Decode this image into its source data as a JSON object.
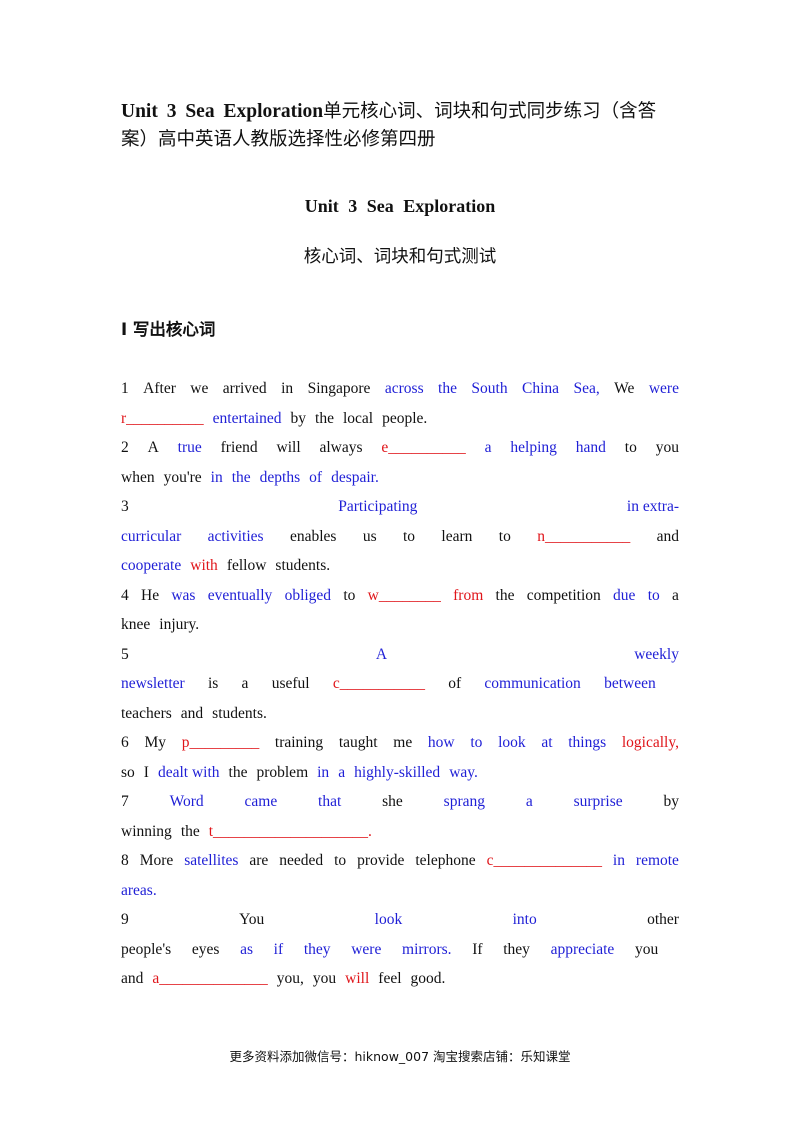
{
  "document": {
    "title_en": "Unit 3 Sea Exploration",
    "title_cn": "单元核心词、词块和句式同步练习（含答案）高中英语人教版选择性必修第四册",
    "unit_heading": "Unit 3 Sea Exploration",
    "sub_heading": "核心词、词块和句式测试",
    "section_title": "I 写出核心词"
  },
  "lines": [
    {
      "words": [
        {
          "t": "1",
          "c": "k"
        },
        {
          "t": "After",
          "c": "k"
        },
        {
          "t": "we",
          "c": "k"
        },
        {
          "t": "arrived",
          "c": "k"
        },
        {
          "t": "in",
          "c": "k"
        },
        {
          "t": "Singapore",
          "c": "k"
        },
        {
          "t": "across",
          "c": "b"
        },
        {
          "t": "the",
          "c": "b"
        },
        {
          "t": "South",
          "c": "b"
        },
        {
          "t": "China",
          "c": "b"
        },
        {
          "t": "Sea,",
          "c": "b"
        },
        {
          "t": "We",
          "c": "k"
        },
        {
          "t": "were",
          "c": "b"
        }
      ]
    },
    {
      "words": [
        {
          "t": "r__________",
          "c": "r"
        },
        {
          "t": "entertained",
          "c": "b"
        },
        {
          "t": "by",
          "c": "k"
        },
        {
          "t": "the",
          "c": "k"
        },
        {
          "t": "local",
          "c": "k"
        },
        {
          "t": "people.",
          "c": "k"
        }
      ],
      "left": true
    },
    {
      "words": [
        {
          "t": "2",
          "c": "k"
        },
        {
          "t": "A",
          "c": "k"
        },
        {
          "t": "true",
          "c": "b"
        },
        {
          "t": "friend",
          "c": "k"
        },
        {
          "t": "will",
          "c": "k"
        },
        {
          "t": "always",
          "c": "k"
        },
        {
          "t": "e__________",
          "c": "r"
        },
        {
          "t": "a",
          "c": "b"
        },
        {
          "t": "helping",
          "c": "b"
        },
        {
          "t": "hand",
          "c": "b"
        },
        {
          "t": "to",
          "c": "k"
        },
        {
          "t": "you",
          "c": "k"
        }
      ]
    },
    {
      "words": [
        {
          "t": "when",
          "c": "k"
        },
        {
          "t": "you're",
          "c": "k"
        },
        {
          "t": "in",
          "c": "b"
        },
        {
          "t": "the",
          "c": "b"
        },
        {
          "t": "depths",
          "c": "b"
        },
        {
          "t": "of",
          "c": "b"
        },
        {
          "t": "despair.",
          "c": "b"
        }
      ],
      "left": true
    },
    {
      "words": [
        {
          "t": "3",
          "c": "k"
        },
        {
          "t": "Participating",
          "c": "b"
        },
        {
          "t": "in extra-",
          "c": "b"
        }
      ]
    },
    {
      "words": [
        {
          "t": "curricular",
          "c": "b"
        },
        {
          "t": "activities",
          "c": "b"
        },
        {
          "t": "enables",
          "c": "k"
        },
        {
          "t": "us",
          "c": "k"
        },
        {
          "t": "to",
          "c": "k"
        },
        {
          "t": "learn",
          "c": "k"
        },
        {
          "t": "to",
          "c": "k"
        },
        {
          "t": "n___________",
          "c": "r"
        },
        {
          "t": "and",
          "c": "k"
        }
      ]
    },
    {
      "words": [
        {
          "t": "cooperate",
          "c": "b"
        },
        {
          "t": "with",
          "c": "r"
        },
        {
          "t": "fellow",
          "c": "k"
        },
        {
          "t": "students.",
          "c": "k"
        }
      ],
      "left": true
    },
    {
      "words": [
        {
          "t": "4",
          "c": "k"
        },
        {
          "t": "He",
          "c": "k"
        },
        {
          "t": "was",
          "c": "b"
        },
        {
          "t": "eventually",
          "c": "b"
        },
        {
          "t": "obliged",
          "c": "b"
        },
        {
          "t": "to",
          "c": "k"
        },
        {
          "t": "w________",
          "c": "r"
        },
        {
          "t": "from",
          "c": "r"
        },
        {
          "t": "the",
          "c": "k"
        },
        {
          "t": "competition",
          "c": "k"
        },
        {
          "t": "due",
          "c": "b"
        },
        {
          "t": "to",
          "c": "b"
        },
        {
          "t": "a",
          "c": "k"
        }
      ]
    },
    {
      "words": [
        {
          "t": "knee",
          "c": "k"
        },
        {
          "t": "injury.",
          "c": "k"
        }
      ],
      "left": true
    },
    {
      "words": [
        {
          "t": "5",
          "c": "k"
        },
        {
          "t": "A",
          "c": "b"
        },
        {
          "t": "weekly",
          "c": "b"
        }
      ]
    },
    {
      "words": [
        {
          "t": "newsletter",
          "c": "b"
        },
        {
          "t": "is",
          "c": "k"
        },
        {
          "t": "a",
          "c": "k"
        },
        {
          "t": "useful",
          "c": "k"
        },
        {
          "t": "c___________",
          "c": "r"
        },
        {
          "t": "of",
          "c": "k"
        },
        {
          "t": "communication",
          "c": "b"
        },
        {
          "t": "between",
          "c": "b"
        },
        {
          "t": " ",
          "c": "k"
        }
      ]
    },
    {
      "words": [
        {
          "t": "teachers",
          "c": "k"
        },
        {
          "t": "and",
          "c": "k"
        },
        {
          "t": "students.",
          "c": "k"
        }
      ],
      "left": true
    },
    {
      "words": [
        {
          "t": "6",
          "c": "k"
        },
        {
          "t": "My",
          "c": "k"
        },
        {
          "t": "p_________",
          "c": "r"
        },
        {
          "t": "training",
          "c": "k"
        },
        {
          "t": "taught",
          "c": "k"
        },
        {
          "t": "me",
          "c": "k"
        },
        {
          "t": "how",
          "c": "b"
        },
        {
          "t": "to",
          "c": "b"
        },
        {
          "t": "look",
          "c": "b"
        },
        {
          "t": "at",
          "c": "b"
        },
        {
          "t": "things",
          "c": "b"
        },
        {
          "t": "logically,",
          "c": "r"
        }
      ]
    },
    {
      "words": [
        {
          "t": "so",
          "c": "k"
        },
        {
          "t": "I",
          "c": "k"
        },
        {
          "t": "dealt with",
          "c": "b"
        },
        {
          "t": "the",
          "c": "k"
        },
        {
          "t": "problem",
          "c": "k"
        },
        {
          "t": "in",
          "c": "b"
        },
        {
          "t": "a",
          "c": "b"
        },
        {
          "t": "highly-skilled",
          "c": "b"
        },
        {
          "t": "way.",
          "c": "b"
        }
      ],
      "left": true
    },
    {
      "words": [
        {
          "t": "7",
          "c": "k"
        },
        {
          "t": "Word",
          "c": "b"
        },
        {
          "t": "came",
          "c": "b"
        },
        {
          "t": "that",
          "c": "b"
        },
        {
          "t": "she",
          "c": "k"
        },
        {
          "t": "sprang",
          "c": "b"
        },
        {
          "t": "a",
          "c": "b"
        },
        {
          "t": "surprise",
          "c": "b"
        },
        {
          "t": "by",
          "c": "k"
        }
      ]
    },
    {
      "words": [
        {
          "t": "winning",
          "c": "k"
        },
        {
          "t": "the",
          "c": "k"
        },
        {
          "t": "t____________________.",
          "c": "r"
        }
      ],
      "left": true
    },
    {
      "words": [
        {
          "t": "8",
          "c": "k"
        },
        {
          "t": "More",
          "c": "k"
        },
        {
          "t": "satellites",
          "c": "b"
        },
        {
          "t": "are",
          "c": "k"
        },
        {
          "t": "needed",
          "c": "k"
        },
        {
          "t": "to",
          "c": "k"
        },
        {
          "t": "provide",
          "c": "k"
        },
        {
          "t": "telephone",
          "c": "k"
        },
        {
          "t": "c______________",
          "c": "r"
        },
        {
          "t": "in",
          "c": "b"
        },
        {
          "t": "remote",
          "c": "b"
        }
      ]
    },
    {
      "words": [
        {
          "t": "areas.",
          "c": "b"
        }
      ],
      "left": true
    },
    {
      "words": [
        {
          "t": "9",
          "c": "k"
        },
        {
          "t": "You",
          "c": "k"
        },
        {
          "t": "look",
          "c": "b"
        },
        {
          "t": "into",
          "c": "b"
        },
        {
          "t": "other",
          "c": "k"
        }
      ]
    },
    {
      "words": [
        {
          "t": "people's",
          "c": "k"
        },
        {
          "t": "eyes",
          "c": "k"
        },
        {
          "t": "as",
          "c": "b"
        },
        {
          "t": "if",
          "c": "b"
        },
        {
          "t": "they",
          "c": "b"
        },
        {
          "t": "were",
          "c": "b"
        },
        {
          "t": "mirrors.",
          "c": "b"
        },
        {
          "t": "If",
          "c": "k"
        },
        {
          "t": "they",
          "c": "k"
        },
        {
          "t": "appreciate",
          "c": "b"
        },
        {
          "t": "you",
          "c": "k"
        },
        {
          "t": " ",
          "c": "k"
        }
      ]
    },
    {
      "words": [
        {
          "t": "and",
          "c": "k"
        },
        {
          "t": "a______________",
          "c": "r"
        },
        {
          "t": "you,",
          "c": "k"
        },
        {
          "t": "you",
          "c": "k"
        },
        {
          "t": "will",
          "c": "r"
        },
        {
          "t": "feel",
          "c": "k"
        },
        {
          "t": "good.",
          "c": "k"
        }
      ],
      "left": true
    }
  ],
  "footer": "更多资料添加微信号：hiknow_007   淘宝搜索店铺：乐知课堂"
}
